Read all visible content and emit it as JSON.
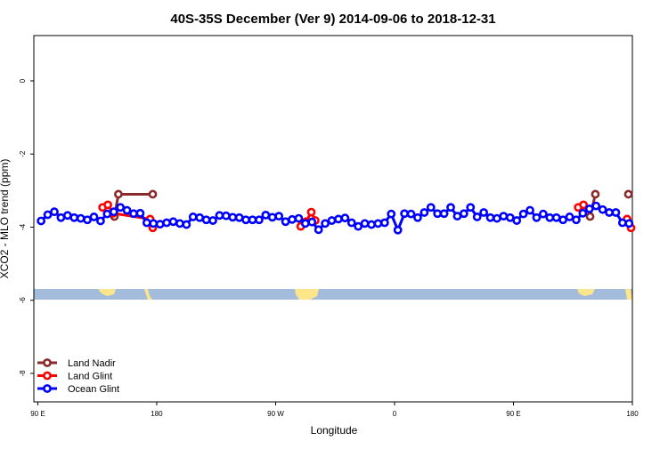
{
  "chart_data": {
    "type": "line",
    "title": "40S-35S December (Ver 9)   2014-09-06 to 2018-12-31",
    "x_label": "Longitude",
    "y_label": "XCO2 - MLO trend (ppm)",
    "xlim": [
      87,
      540
    ],
    "ylim": [
      -8.78,
      1.24
    ],
    "xticks": [
      {
        "value": 90,
        "label": "90 E"
      },
      {
        "value": 180,
        "label": "180"
      },
      {
        "value": 270,
        "label": "90 W"
      },
      {
        "value": 360,
        "label": "0"
      },
      {
        "value": 450,
        "label": "90 E"
      },
      {
        "value": 540,
        "label": "180"
      }
    ],
    "yticks": [
      0,
      -2,
      -4,
      -6,
      -8
    ],
    "legend": "bottom-left",
    "series": [
      {
        "name": "Land Nadir",
        "color": "#8b2a2a",
        "x": [
          148,
          151,
          177,
          300,
          508,
          512,
          520,
          537
        ],
        "values": [
          -3.71,
          -3.1,
          -3.1,
          null,
          -3.71,
          -3.1,
          null,
          -3.1
        ]
      },
      {
        "name": "Land Glint",
        "color": "#ff0000",
        "x": [
          139,
          143,
          147,
          175,
          177,
          200,
          289,
          293,
          297,
          300,
          320,
          499,
          503,
          520,
          536,
          539
        ],
        "values": [
          -3.46,
          -3.39,
          -3.62,
          -3.78,
          -4.02,
          null,
          -3.98,
          -3.85,
          -3.59,
          -3.82,
          null,
          -3.46,
          -3.39,
          null,
          -3.78,
          -4.02
        ]
      },
      {
        "name": "Ocean Glint",
        "color": "#0000ff",
        "x": [
          92.5,
          97.5,
          102.5,
          107.5,
          112.5,
          117.5,
          122.5,
          127.5,
          132.5,
          137.5,
          142.5,
          147.5,
          152.5,
          157.5,
          162.5,
          167.5,
          172.5,
          177.5,
          182.5,
          187.5,
          192.5,
          197.5,
          202.5,
          207.5,
          212.5,
          217.5,
          222.5,
          227.5,
          232.5,
          237.5,
          242.5,
          247.5,
          252.5,
          257.5,
          262.5,
          267.5,
          272.5,
          277.5,
          282.5,
          287.5,
          292.5,
          297.5,
          302.5,
          307.5,
          312.5,
          317.5,
          322.5,
          327.5,
          332.5,
          337.5,
          342.5,
          347.5,
          352.5,
          357.5,
          362.5,
          367.5,
          372.5,
          377.5,
          382.5,
          387.5,
          392.5,
          397.5,
          402.5,
          407.5,
          412.5,
          417.5,
          422.5,
          427.5,
          432.5,
          437.5,
          442.5,
          447.5,
          452.5,
          457.5,
          462.5,
          467.5,
          472.5,
          477.5,
          482.5,
          487.5,
          492.5,
          497.5,
          502.5,
          507.5,
          512.5,
          517.5,
          522.5,
          527.5,
          532.5,
          537.5
        ],
        "values": [
          -3.83,
          -3.66,
          -3.58,
          -3.74,
          -3.68,
          -3.74,
          -3.76,
          -3.8,
          -3.72,
          -3.83,
          -3.64,
          -3.58,
          -3.46,
          -3.54,
          -3.63,
          -3.62,
          -3.88,
          -3.9,
          -3.92,
          -3.88,
          -3.85,
          -3.9,
          -3.93,
          -3.72,
          -3.74,
          -3.8,
          -3.82,
          -3.68,
          -3.69,
          -3.73,
          -3.74,
          -3.8,
          -3.8,
          -3.8,
          -3.67,
          -3.73,
          -3.7,
          -3.85,
          -3.79,
          -3.76,
          -3.9,
          -3.86,
          -4.07,
          -3.9,
          -3.82,
          -3.78,
          -3.75,
          -3.88,
          -3.98,
          -3.9,
          -3.93,
          -3.9,
          -3.88,
          -3.64,
          -4.08,
          -3.63,
          -3.64,
          -3.74,
          -3.6,
          -3.46,
          -3.63,
          -3.63,
          -3.46,
          -3.7,
          -3.63,
          -3.46,
          -3.72,
          -3.6,
          -3.74,
          -3.76,
          -3.7,
          -3.74,
          -3.82,
          -3.64,
          -3.54,
          -3.74,
          -3.64,
          -3.74,
          -3.74,
          -3.8,
          -3.72,
          -3.8,
          -3.62,
          -3.5,
          -3.42,
          -3.52,
          -3.6,
          -3.6,
          -3.88,
          -3.9
        ]
      }
    ]
  }
}
